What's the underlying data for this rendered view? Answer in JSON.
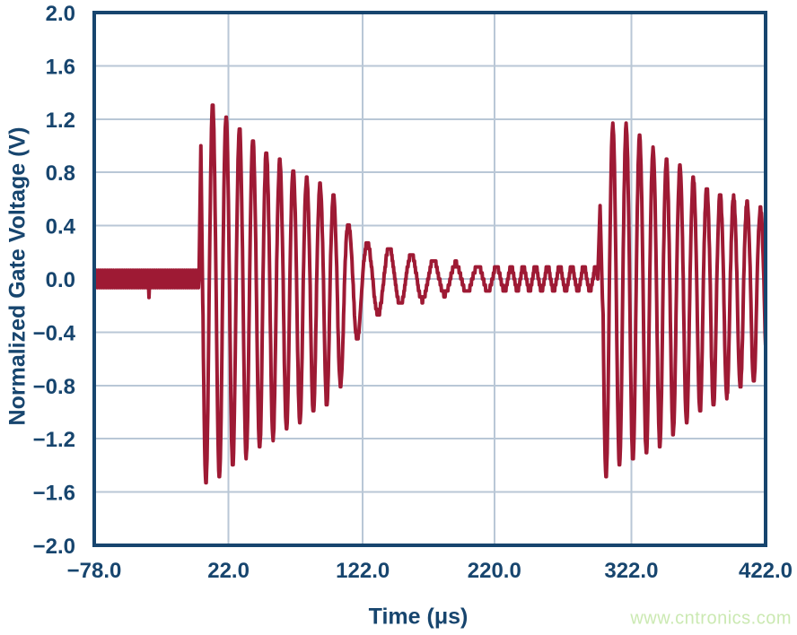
{
  "page": {
    "background": "#ffffff"
  },
  "watermark": {
    "text": "www.cntronics.com",
    "color": "#cbe9b2"
  },
  "chart_data": {
    "type": "line",
    "title": "",
    "xlabel": "Time (μs)",
    "ylabel": "Normalized Gate Voltage (V)",
    "xlim": [
      -78.0,
      422.0
    ],
    "ylim": [
      -2.0,
      2.0
    ],
    "grid": true,
    "legend": "none",
    "trace_color": "#9e1a34",
    "axis_color": "#17456e",
    "grid_color": "#b9c7d6",
    "x_ticks": [
      {
        "t": -78.0,
        "label": "−78.0"
      },
      {
        "t": 22.0,
        "label": "22.0"
      },
      {
        "t": 122.0,
        "label": "122.0"
      },
      {
        "t": 220.0,
        "label": "220.0"
      },
      {
        "t": 322.0,
        "label": "322.0"
      },
      {
        "t": 422.0,
        "label": "422.0"
      }
    ],
    "y_ticks": [
      {
        "v": 2.0,
        "label": "2.0"
      },
      {
        "v": 1.6,
        "label": "1.6"
      },
      {
        "v": 1.2,
        "label": "1.2"
      },
      {
        "v": 0.8,
        "label": "0.8"
      },
      {
        "v": 0.4,
        "label": "0.4"
      },
      {
        "v": 0.0,
        "label": "0.0"
      },
      {
        "v": -0.4,
        "label": "−0.4"
      },
      {
        "v": -0.8,
        "label": "−0.8"
      },
      {
        "v": -1.2,
        "label": "−1.2"
      },
      {
        "v": -1.6,
        "label": "−1.6"
      },
      {
        "v": -2.0,
        "label": "−2.0"
      }
    ],
    "features": {
      "quiet_level_v": 0.0,
      "noise_band_v": 0.065,
      "burst1_start_us": 0,
      "burst1_initial_spike_v": 1.0,
      "burst1_peak_v": 1.31,
      "burst1_min_v": -1.53,
      "burst1_ring_period_us": 10,
      "burst1_decay_end_us": 130,
      "mid_ripple_amp_v": 0.09,
      "burst2_start_us": 298,
      "burst2_initial_spike_v": 0.55,
      "burst2_peak_v": 1.15,
      "burst2_min_v": -1.48,
      "burst2_ring_period_us": 10,
      "burst2_end_amp_pos_v": 0.52,
      "burst2_end_amp_neg_v": -0.74
    },
    "waveform": {
      "sample_step_us": 0.3,
      "quantize_v": 0.045,
      "segments": [
        {
          "type": "noise",
          "t0": -78,
          "t1": 0,
          "amp": 0.065,
          "step_us": 0.8,
          "ticks": [
            [
              -37,
              -0.14
            ]
          ]
        },
        {
          "type": "spike",
          "t0": 0,
          "t1": 2.8,
          "peak": 1.0,
          "undershoot": -0.18
        },
        {
          "type": "ring",
          "t0": 3,
          "t1": 296,
          "phase0": 3.14159,
          "period_pts": [
            [
              3,
              10
            ],
            [
              100,
              10
            ],
            [
              130,
              16.5
            ],
            [
              205,
              16.5
            ],
            [
              235,
              9
            ],
            [
              296,
              9
            ]
          ],
          "pos_env": [
            [
              10.9,
              1.31
            ],
            [
              21,
              1.22
            ],
            [
              32,
              1.13
            ],
            [
              42,
              1.03
            ],
            [
              52,
              0.95
            ],
            [
              62,
              0.88
            ],
            [
              72,
              0.82
            ],
            [
              82,
              0.75
            ],
            [
              92,
              0.7
            ],
            [
              102,
              0.62
            ],
            [
              110,
              0.45
            ],
            [
              119,
              0.28
            ],
            [
              138,
              0.25
            ],
            [
              154,
              0.2
            ],
            [
              171,
              0.15
            ],
            [
              188,
              0.12
            ],
            [
              205,
              0.1
            ],
            [
              240,
              0.09
            ],
            [
              290,
              0.1
            ],
            [
              296,
              0.1
            ]
          ],
          "neg_env": [
            [
              5.5,
              1.53
            ],
            [
              17,
              1.5
            ],
            [
              27,
              1.38
            ],
            [
              38,
              1.32
            ],
            [
              48,
              1.26
            ],
            [
              58,
              1.17
            ],
            [
              68,
              1.12
            ],
            [
              78,
              1.07
            ],
            [
              88,
              0.99
            ],
            [
              98,
              0.94
            ],
            [
              108,
              0.75
            ],
            [
              118,
              0.45
            ],
            [
              129,
              0.29
            ],
            [
              146,
              0.2
            ],
            [
              163,
              0.17
            ],
            [
              179,
              0.12
            ],
            [
              196,
              0.1
            ],
            [
              220,
              0.09
            ],
            [
              296,
              0.08
            ]
          ]
        },
        {
          "type": "spike",
          "t0": 297,
          "t1": 300.5,
          "peak": 0.55,
          "undershoot": -0.15
        },
        {
          "type": "ring",
          "t0": 301,
          "t1": 422,
          "phase0": 3.14159,
          "period_pts": [
            [
              301,
              10
            ],
            [
              422,
              10
            ]
          ],
          "pos_env": [
            [
              309,
              1.15
            ],
            [
              321,
              1.15
            ],
            [
              331,
              1.04
            ],
            [
              342,
              0.94
            ],
            [
              350,
              0.88
            ],
            [
              362,
              0.82
            ],
            [
              372,
              0.72
            ],
            [
              382,
              0.67
            ],
            [
              392,
              0.62
            ],
            [
              401,
              0.61
            ],
            [
              411,
              0.56
            ],
            [
              422,
              0.52
            ]
          ],
          "neg_env": [
            [
              304,
              1.48
            ],
            [
              316,
              1.38
            ],
            [
              328,
              1.35
            ],
            [
              338,
              1.28
            ],
            [
              348,
              1.22
            ],
            [
              358,
              1.12
            ],
            [
              368,
              1.05
            ],
            [
              378,
              0.98
            ],
            [
              388,
              0.92
            ],
            [
              398,
              0.85
            ],
            [
              408,
              0.8
            ],
            [
              422,
              0.74
            ]
          ]
        }
      ]
    }
  }
}
